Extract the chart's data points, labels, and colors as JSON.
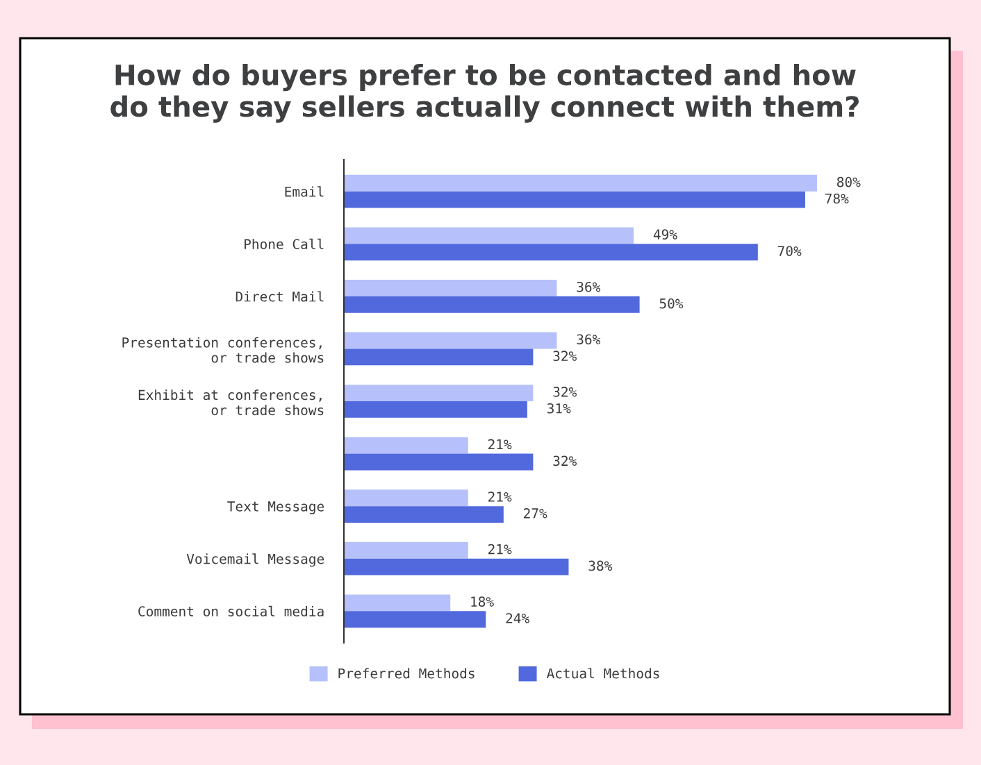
{
  "chart_data": {
    "type": "bar",
    "orientation": "horizontal",
    "title": "How do buyers prefer to be contacted and how\ndo they say sellers actually connect with them?",
    "categories": [
      "Email",
      "Phone Call",
      "Direct Mail",
      "Presentation conferences,\nor trade shows",
      "Exhibit at conferences,\nor trade shows",
      null,
      "Text Message",
      "Voicemail Message",
      "Comment on social media"
    ],
    "series": [
      {
        "name": "Preferred Methods",
        "color": "#b6c1fb",
        "values": [
          80,
          49,
          36,
          36,
          32,
          21,
          21,
          21,
          18
        ],
        "value_labels": [
          "80%",
          "49%",
          "36%",
          "36%",
          "32%",
          "21%",
          "21%",
          "21%",
          "18%"
        ]
      },
      {
        "name": "Actual Methods",
        "color": "#5169dd",
        "values": [
          78,
          70,
          50,
          32,
          31,
          32,
          27,
          38,
          24
        ],
        "value_labels": [
          "78%",
          "70%",
          "50%",
          "32%",
          "31%",
          "32%",
          "27%",
          "38%",
          "24%"
        ]
      }
    ],
    "tick_labels": "y",
    "legend": "bottom"
  }
}
